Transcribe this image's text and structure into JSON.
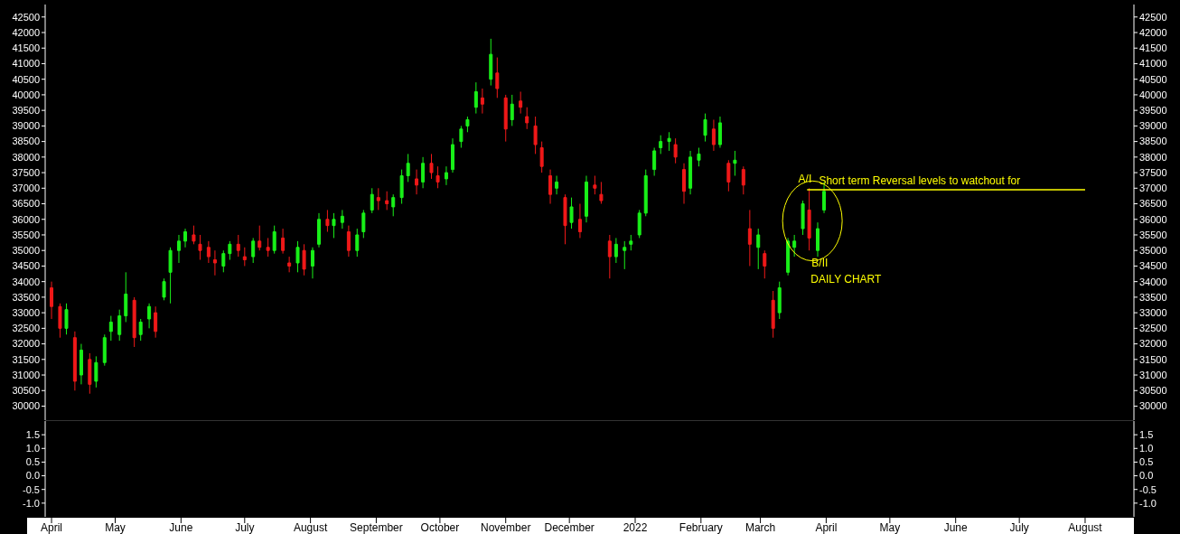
{
  "chart_data": [
    {
      "type": "candlestick",
      "x": [
        "2021-04-01",
        "2021-04-05",
        "2021-04-08",
        "2021-04-12",
        "2021-04-15",
        "2021-04-19",
        "2021-04-22",
        "2021-04-26",
        "2021-04-29",
        "2021-05-03",
        "2021-05-06",
        "2021-05-10",
        "2021-05-13",
        "2021-05-17",
        "2021-05-20",
        "2021-05-24",
        "2021-05-27",
        "2021-05-31",
        "2021-06-03",
        "2021-06-07",
        "2021-06-10",
        "2021-06-14",
        "2021-06-17",
        "2021-06-21",
        "2021-06-24",
        "2021-06-28",
        "2021-07-01",
        "2021-07-05",
        "2021-07-08",
        "2021-07-12",
        "2021-07-15",
        "2021-07-19",
        "2021-07-22",
        "2021-07-26",
        "2021-07-29",
        "2021-08-02",
        "2021-08-05",
        "2021-08-09",
        "2021-08-12",
        "2021-08-16",
        "2021-08-19",
        "2021-08-23",
        "2021-08-26",
        "2021-08-30",
        "2021-09-02",
        "2021-09-06",
        "2021-09-09",
        "2021-09-13",
        "2021-09-16",
        "2021-09-20",
        "2021-09-23",
        "2021-09-27",
        "2021-09-30",
        "2021-10-04",
        "2021-10-07",
        "2021-10-11",
        "2021-10-14",
        "2021-10-18",
        "2021-10-21",
        "2021-10-25",
        "2021-10-28",
        "2021-11-01",
        "2021-11-04",
        "2021-11-08",
        "2021-11-11",
        "2021-11-15",
        "2021-11-18",
        "2021-11-22",
        "2021-11-25",
        "2021-11-29",
        "2021-12-02",
        "2021-12-06",
        "2021-12-09",
        "2021-12-13",
        "2021-12-16",
        "2021-12-20",
        "2021-12-23",
        "2021-12-27",
        "2021-12-30",
        "2022-01-03",
        "2022-01-06",
        "2022-01-10",
        "2022-01-13",
        "2022-01-17",
        "2022-01-20",
        "2022-01-24",
        "2022-01-27",
        "2022-01-31",
        "2022-02-03",
        "2022-02-07",
        "2022-02-10",
        "2022-02-14",
        "2022-02-17",
        "2022-02-21",
        "2022-02-24",
        "2022-02-28",
        "2022-03-03",
        "2022-03-07",
        "2022-03-10",
        "2022-03-14",
        "2022-03-17",
        "2022-03-21",
        "2022-03-24",
        "2022-03-28",
        "2022-03-31"
      ],
      "ohlc": [
        [
          33800,
          34000,
          32800,
          33200
        ],
        [
          33200,
          33300,
          32200,
          32500
        ],
        [
          32500,
          33300,
          32300,
          33100
        ],
        [
          32200,
          32400,
          30500,
          30800
        ],
        [
          31000,
          32000,
          30700,
          31800
        ],
        [
          31500,
          31700,
          30400,
          30700
        ],
        [
          30800,
          31600,
          30600,
          31400
        ],
        [
          31400,
          32300,
          31300,
          32200
        ],
        [
          32400,
          32900,
          32100,
          32700
        ],
        [
          32300,
          33100,
          32100,
          32900
        ],
        [
          32900,
          34300,
          32700,
          33600
        ],
        [
          33400,
          33500,
          31900,
          32200
        ],
        [
          32300,
          32800,
          32100,
          32700
        ],
        [
          32800,
          33300,
          32500,
          33200
        ],
        [
          33000,
          33200,
          32200,
          32400
        ],
        [
          33500,
          34100,
          33400,
          34000
        ],
        [
          34300,
          35100,
          33300,
          35000
        ],
        [
          35000,
          35500,
          34600,
          35300
        ],
        [
          35300,
          35700,
          35100,
          35600
        ],
        [
          35500,
          35800,
          35200,
          35300
        ],
        [
          35200,
          35500,
          34700,
          35000
        ],
        [
          35100,
          35300,
          34600,
          34800
        ],
        [
          34700,
          35000,
          34200,
          34600
        ],
        [
          34500,
          35000,
          34300,
          34900
        ],
        [
          34900,
          35300,
          34700,
          35200
        ],
        [
          35200,
          35500,
          34800,
          35000
        ],
        [
          34800,
          35100,
          34500,
          34700
        ],
        [
          34800,
          35400,
          34600,
          35300
        ],
        [
          35300,
          35800,
          35000,
          35100
        ],
        [
          35100,
          35400,
          34800,
          35000
        ],
        [
          35000,
          35800,
          34900,
          35600
        ],
        [
          35400,
          35700,
          34900,
          35000
        ],
        [
          34600,
          34800,
          34300,
          34500
        ],
        [
          34600,
          35300,
          34300,
          35100
        ],
        [
          35000,
          35200,
          34200,
          34400
        ],
        [
          34500,
          35100,
          34100,
          35000
        ],
        [
          35200,
          36200,
          35100,
          36000
        ],
        [
          36000,
          36300,
          35600,
          35800
        ],
        [
          35800,
          36200,
          35400,
          36000
        ],
        [
          35900,
          36300,
          35700,
          36100
        ],
        [
          35600,
          35800,
          34800,
          35000
        ],
        [
          35000,
          35700,
          34800,
          35500
        ],
        [
          35600,
          36300,
          35400,
          36200
        ],
        [
          36300,
          37000,
          36200,
          36800
        ],
        [
          36700,
          37000,
          36300,
          36600
        ],
        [
          36600,
          36900,
          36300,
          36500
        ],
        [
          36400,
          36800,
          36100,
          36700
        ],
        [
          36700,
          37600,
          36500,
          37400
        ],
        [
          37400,
          38100,
          37200,
          37800
        ],
        [
          37300,
          37600,
          36800,
          37100
        ],
        [
          37200,
          38000,
          37000,
          37800
        ],
        [
          37800,
          38100,
          37300,
          37500
        ],
        [
          37400,
          37700,
          37000,
          37200
        ],
        [
          37300,
          37700,
          37100,
          37500
        ],
        [
          37600,
          38600,
          37500,
          38400
        ],
        [
          38500,
          39000,
          38300,
          38900
        ],
        [
          39000,
          39300,
          38800,
          39200
        ],
        [
          39600,
          40400,
          39400,
          40100
        ],
        [
          39900,
          40200,
          39400,
          39700
        ],
        [
          40500,
          41800,
          40300,
          41300
        ],
        [
          40700,
          41200,
          39900,
          40200
        ],
        [
          39900,
          40000,
          38500,
          38900
        ],
        [
          39200,
          40000,
          39000,
          39700
        ],
        [
          39800,
          40100,
          39400,
          39600
        ],
        [
          39300,
          39600,
          38900,
          39100
        ],
        [
          39000,
          39300,
          38100,
          38400
        ],
        [
          38300,
          38500,
          37500,
          37700
        ],
        [
          37400,
          37600,
          36500,
          36800
        ],
        [
          37000,
          37400,
          36800,
          37200
        ],
        [
          36700,
          36800,
          35200,
          35800
        ],
        [
          35900,
          36700,
          35700,
          36400
        ],
        [
          36000,
          36500,
          35400,
          35600
        ],
        [
          36100,
          37400,
          35900,
          37200
        ],
        [
          37100,
          37400,
          36800,
          37000
        ],
        [
          36800,
          37200,
          36500,
          36600
        ],
        [
          35300,
          35500,
          34100,
          34800
        ],
        [
          34800,
          35400,
          34600,
          35200
        ],
        [
          35000,
          35300,
          34400,
          35100
        ],
        [
          35200,
          35500,
          35000,
          35300
        ],
        [
          35500,
          36300,
          35400,
          36200
        ],
        [
          36200,
          37600,
          36100,
          37400
        ],
        [
          37600,
          38300,
          37400,
          38200
        ],
        [
          38300,
          38700,
          38100,
          38500
        ],
        [
          38500,
          38800,
          38200,
          38600
        ],
        [
          38400,
          38600,
          37800,
          38000
        ],
        [
          37600,
          37800,
          36500,
          36900
        ],
        [
          37000,
          38200,
          36800,
          38000
        ],
        [
          37900,
          38300,
          37700,
          38100
        ],
        [
          38700,
          39400,
          38500,
          39200
        ],
        [
          38900,
          39200,
          38200,
          38400
        ],
        [
          38400,
          39300,
          38300,
          39100
        ],
        [
          37800,
          37900,
          36900,
          37200
        ],
        [
          37800,
          38200,
          37400,
          37900
        ],
        [
          37600,
          37700,
          36800,
          37100
        ],
        [
          35700,
          36300,
          34500,
          35200
        ],
        [
          35100,
          35700,
          34400,
          35500
        ],
        [
          34900,
          35000,
          34100,
          34500
        ],
        [
          33400,
          33700,
          32200,
          32500
        ],
        [
          33000,
          34000,
          32800,
          33800
        ],
        [
          34300,
          35400,
          34200,
          35300
        ],
        [
          35100,
          35500,
          34800,
          35300
        ],
        [
          35700,
          36600,
          35500,
          36500
        ],
        [
          36300,
          37000,
          35000,
          35400
        ],
        [
          35000,
          35900,
          34800,
          35700
        ],
        [
          36300,
          37200,
          36200,
          36900
        ]
      ],
      "tick_labels": "y",
      "series": [
        {
          "type": "line",
          "x": [
            "2022-03-23",
            "2022-08-01"
          ],
          "values": [
            36950,
            36950
          ],
          "color": "#ffff00"
        }
      ],
      "xlim": [
        "2021-03-29",
        "2022-08-24"
      ],
      "ylim": [
        29550,
        42900
      ],
      "yticks": [
        30000,
        30500,
        31000,
        31500,
        32000,
        32500,
        33000,
        33500,
        34000,
        34500,
        35000,
        35500,
        36000,
        36500,
        37000,
        37500,
        38000,
        38500,
        39000,
        39500,
        40000,
        40500,
        41000,
        41500,
        42000,
        42500
      ],
      "y2lim": [
        29550,
        42900
      ],
      "y2ticks": [
        30000,
        30500,
        31000,
        31500,
        32000,
        32500,
        33000,
        33500,
        34000,
        34500,
        35000,
        35500,
        36000,
        36500,
        37000,
        37500,
        38000,
        38500,
        39000,
        39500,
        40000,
        40500,
        41000,
        41500,
        42000,
        42500
      ],
      "annotations": [
        {
          "text": "Short term Reversal levels to watchout for",
          "x": "2022-05-15",
          "y": 36950
        },
        {
          "text": "A/I",
          "x": "2022-03-22",
          "y": 37000
        },
        {
          "text": "B/II",
          "x": "2022-03-29",
          "y": 34900
        },
        "DAILY CHART"
      ]
    },
    {
      "type": "line",
      "xlim": [
        "2021-03-29",
        "2022-08-24"
      ],
      "xticks": [
        {
          "value": "2021-04-01",
          "label": "April"
        },
        {
          "value": "2021-05-01",
          "label": "May"
        },
        {
          "value": "2021-06-01",
          "label": "June"
        },
        {
          "value": "2021-07-01",
          "label": "July"
        },
        {
          "value": "2021-08-01",
          "label": "August"
        },
        {
          "value": "2021-09-01",
          "label": "September"
        },
        {
          "value": "2021-10-01",
          "label": "October"
        },
        {
          "value": "2021-11-01",
          "label": "November"
        },
        {
          "value": "2021-12-01",
          "label": "December"
        },
        {
          "value": "2022-01-01",
          "label": "2022"
        },
        {
          "value": "2022-02-01",
          "label": "February"
        },
        {
          "value": "2022-03-01",
          "label": "March"
        },
        {
          "value": "2022-04-01",
          "label": "April"
        },
        {
          "value": "2022-05-01",
          "label": "May"
        },
        {
          "value": "2022-06-01",
          "label": "June"
        },
        {
          "value": "2022-07-01",
          "label": "July"
        },
        {
          "value": "2022-08-01",
          "label": "August"
        }
      ],
      "ylim": [
        -1.5,
        2.0
      ],
      "yticks": [
        {
          "value": -1,
          "label": "-1.0"
        },
        {
          "value": -0.5,
          "label": "-0.5"
        },
        {
          "value": 0,
          "label": "0.0"
        },
        {
          "value": 0.5,
          "label": "0.5"
        },
        {
          "value": 1,
          "label": "1.0"
        },
        {
          "value": 1.5,
          "label": "1.5"
        }
      ],
      "y2lim": [
        -1.5,
        2.0
      ],
      "y2ticks": [
        {
          "value": -1,
          "label": "-1.0"
        },
        {
          "value": -0.5,
          "label": "-0.5"
        },
        {
          "value": 0,
          "label": "0.0"
        },
        {
          "value": 0.5,
          "label": "0.5"
        },
        {
          "value": 1,
          "label": "1.0"
        },
        {
          "value": 1.5,
          "label": "1.5"
        }
      ],
      "tick_labels": true
    }
  ]
}
